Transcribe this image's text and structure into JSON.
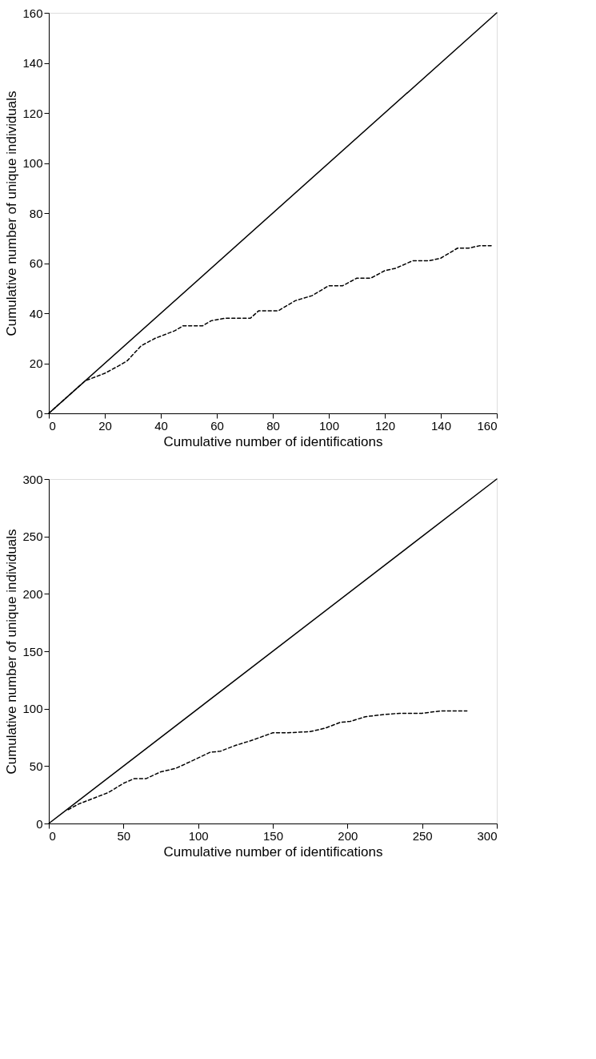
{
  "chart_data": [
    {
      "type": "line",
      "xlabel": "Cumulative number of identifications",
      "ylabel": "Cumulative number of unique individuals",
      "xlim": [
        0,
        160
      ],
      "ylim": [
        0,
        160
      ],
      "xticks": [
        0,
        20,
        40,
        60,
        80,
        100,
        120,
        140,
        160
      ],
      "yticks": [
        0,
        20,
        40,
        60,
        80,
        100,
        120,
        140,
        160
      ],
      "grid": false,
      "series": [
        {
          "color": "#000000",
          "line_style": "solid",
          "x": [
            0,
            160
          ],
          "values": [
            0,
            160
          ]
        },
        {
          "color": "#000000",
          "line_style": "dashed",
          "x": [
            0,
            13,
            20,
            25,
            28,
            33,
            38,
            45,
            48,
            55,
            58,
            63,
            72,
            75,
            82,
            88,
            94,
            100,
            105,
            110,
            115,
            120,
            124,
            130,
            136,
            140,
            146,
            150,
            154,
            158
          ],
          "values": [
            0,
            13,
            16,
            19,
            21,
            27,
            30,
            33,
            35,
            35,
            37,
            38,
            38,
            41,
            41,
            45,
            47,
            51,
            51,
            54,
            54,
            57,
            58,
            61,
            61,
            62,
            66,
            66,
            67,
            67
          ]
        }
      ]
    },
    {
      "type": "line",
      "xlabel": "Cumulative number of identifications",
      "ylabel": "Cumulative number of unique individuals",
      "xlim": [
        0,
        300
      ],
      "ylim": [
        0,
        300
      ],
      "xticks": [
        0,
        50,
        100,
        150,
        200,
        250,
        300
      ],
      "yticks": [
        0,
        50,
        100,
        150,
        200,
        250,
        300
      ],
      "grid": false,
      "series": [
        {
          "color": "#000000",
          "line_style": "solid",
          "x": [
            0,
            300
          ],
          "values": [
            0,
            300
          ]
        },
        {
          "color": "#000000",
          "line_style": "dashed",
          "x": [
            13,
            20,
            30,
            40,
            50,
            57,
            65,
            75,
            85,
            95,
            108,
            115,
            125,
            135,
            150,
            160,
            175,
            185,
            195,
            202,
            212,
            225,
            235,
            250,
            262,
            280
          ],
          "values": [
            12,
            17,
            22,
            27,
            35,
            39,
            39,
            45,
            48,
            54,
            62,
            63,
            68,
            72,
            79,
            79,
            80,
            83,
            88,
            89,
            93,
            95,
            96,
            96,
            98,
            98
          ]
        }
      ]
    }
  ]
}
